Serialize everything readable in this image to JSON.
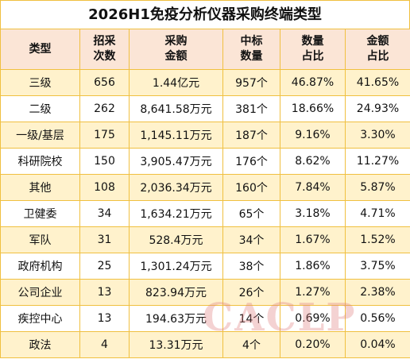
{
  "title": "2026H1免疫分析仪器采购终端类型",
  "table": {
    "header": [
      "类型",
      "招采\n次数",
      "采购\n金额",
      "中标\n数量",
      "数量\n占比",
      "金额\n占比"
    ],
    "rows": [
      [
        "三级",
        "656",
        "1.44亿元",
        "957个",
        "46.87%",
        "41.65%"
      ],
      [
        "二级",
        "262",
        "8,641.58万元",
        "381个",
        "18.66%",
        "24.93%"
      ],
      [
        "一级/基层",
        "175",
        "1,145.11万元",
        "187个",
        "9.16%",
        "3.30%"
      ],
      [
        "科研院校",
        "150",
        "3,905.47万元",
        "176个",
        "8.62%",
        "11.27%"
      ],
      [
        "其他",
        "108",
        "2,036.34万元",
        "160个",
        "7.84%",
        "5.87%"
      ],
      [
        "卫健委",
        "34",
        "1,634.21万元",
        "65个",
        "3.18%",
        "4.71%"
      ],
      [
        "军队",
        "31",
        "528.4万元",
        "34个",
        "1.67%",
        "1.52%"
      ],
      [
        "政府机构",
        "25",
        "1,301.24万元",
        "38个",
        "1.86%",
        "3.75%"
      ],
      [
        "公司企业",
        "13",
        "823.94万元",
        "26个",
        "1.27%",
        "2.38%"
      ],
      [
        "疾控中心",
        "13",
        "194.63万元",
        "14个",
        "0.69%",
        "0.56%"
      ],
      [
        "政法",
        "4",
        "13.31万元",
        "4个",
        "0.20%",
        "0.04%"
      ]
    ]
  },
  "watermark": "CACLP"
}
